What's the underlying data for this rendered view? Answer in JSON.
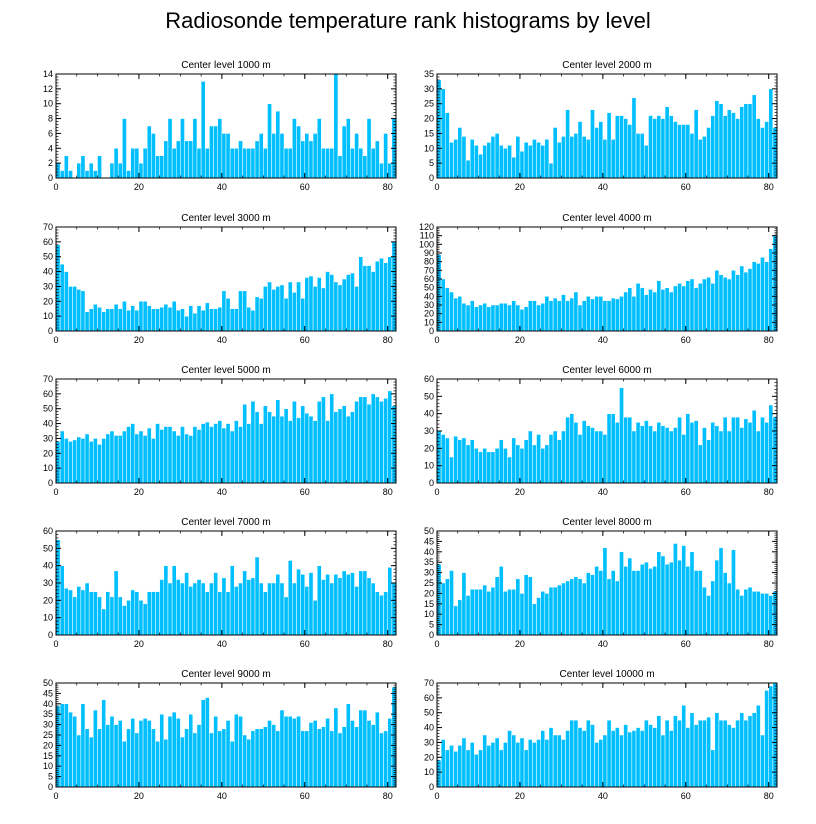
{
  "title": "Radiosonde temperature rank histograms by level",
  "chart_data": [
    {
      "type": "bar",
      "title": "Center level 1000 m",
      "xlim": [
        0,
        82
      ],
      "ylim": [
        0,
        14
      ],
      "yticks": [
        0,
        2,
        4,
        6,
        8,
        10,
        12,
        14
      ],
      "xticks": [
        0,
        20,
        40,
        60,
        80
      ],
      "values": [
        2,
        1,
        3,
        1,
        0,
        2,
        3,
        1,
        2,
        1,
        3,
        0,
        0,
        2,
        4,
        2,
        8,
        1,
        4,
        4,
        2,
        4,
        7,
        6,
        3,
        3,
        5,
        8,
        4,
        5,
        8,
        5,
        5,
        8,
        4,
        13,
        4,
        7,
        7,
        8,
        6,
        6,
        4,
        4,
        5,
        4,
        4,
        4,
        5,
        6,
        4,
        10,
        6,
        9,
        6,
        4,
        4,
        8,
        7,
        5,
        6,
        5,
        6,
        8,
        4,
        4,
        4,
        14,
        3,
        7,
        8,
        4,
        6,
        4,
        3,
        8,
        4,
        5,
        2,
        6,
        2,
        8
      ]
    },
    {
      "type": "bar",
      "title": "Center level 2000 m",
      "xlim": [
        0,
        82
      ],
      "ylim": [
        0,
        35
      ],
      "yticks": [
        0,
        5,
        10,
        15,
        20,
        25,
        30,
        35
      ],
      "xticks": [
        0,
        20,
        40,
        60,
        80
      ],
      "values": [
        33,
        30,
        22,
        12,
        13,
        17,
        14,
        6,
        13,
        11,
        8,
        11,
        12,
        14,
        15,
        11,
        10,
        11,
        7,
        14,
        9,
        12,
        11,
        13,
        12,
        11,
        13,
        5,
        17,
        12,
        14,
        23,
        14,
        15,
        19,
        14,
        13,
        23,
        17,
        19,
        13,
        22,
        13,
        21,
        21,
        20,
        18,
        27,
        15,
        15,
        11,
        21,
        20,
        21,
        20,
        24,
        21,
        19,
        18,
        18,
        18,
        15,
        23,
        13,
        14,
        17,
        21,
        26,
        25,
        21,
        23,
        22,
        20,
        24,
        25,
        25,
        28,
        20,
        17,
        19,
        30,
        17
      ]
    },
    {
      "type": "bar",
      "title": "Center level 3000 m",
      "xlim": [
        0,
        82
      ],
      "ylim": [
        0,
        70
      ],
      "yticks": [
        0,
        10,
        20,
        30,
        40,
        50,
        60,
        70
      ],
      "xticks": [
        0,
        20,
        40,
        60,
        80
      ],
      "values": [
        58,
        45,
        40,
        30,
        30,
        28,
        27,
        13,
        15,
        18,
        16,
        13,
        15,
        15,
        18,
        15,
        20,
        14,
        17,
        14,
        20,
        20,
        17,
        15,
        15,
        16,
        18,
        16,
        20,
        14,
        15,
        10,
        17,
        12,
        17,
        14,
        19,
        15,
        15,
        16,
        27,
        22,
        15,
        15,
        27,
        27,
        16,
        14,
        23,
        22,
        30,
        33,
        28,
        30,
        31,
        22,
        33,
        26,
        33,
        22,
        36,
        37,
        30,
        36,
        29,
        40,
        38,
        33,
        31,
        35,
        38,
        39,
        30,
        50,
        44,
        44,
        40,
        47,
        49,
        46,
        50,
        60
      ]
    },
    {
      "type": "bar",
      "title": "Center level 4000 m",
      "xlim": [
        0,
        82
      ],
      "ylim": [
        0,
        120
      ],
      "yticks": [
        0,
        10,
        20,
        30,
        40,
        50,
        60,
        70,
        80,
        90,
        100,
        110,
        120
      ],
      "xticks": [
        0,
        20,
        40,
        60,
        80
      ],
      "values": [
        88,
        60,
        50,
        45,
        38,
        40,
        32,
        30,
        35,
        28,
        30,
        32,
        28,
        30,
        30,
        32,
        32,
        30,
        35,
        30,
        25,
        28,
        35,
        35,
        30,
        32,
        40,
        35,
        38,
        35,
        42,
        35,
        38,
        45,
        30,
        35,
        40,
        37,
        40,
        40,
        35,
        35,
        38,
        37,
        40,
        45,
        50,
        40,
        55,
        50,
        42,
        48,
        45,
        58,
        48,
        50,
        45,
        52,
        55,
        52,
        58,
        60,
        50,
        55,
        60,
        62,
        55,
        70,
        65,
        62,
        60,
        70,
        65,
        75,
        68,
        72,
        80,
        78,
        85,
        80,
        95,
        110
      ]
    },
    {
      "type": "bar",
      "title": "Center level 5000 m",
      "xlim": [
        0,
        82
      ],
      "ylim": [
        0,
        70
      ],
      "yticks": [
        0,
        10,
        20,
        30,
        40,
        50,
        60,
        70
      ],
      "xticks": [
        0,
        20,
        40,
        60,
        80
      ],
      "values": [
        28,
        35,
        30,
        28,
        29,
        31,
        30,
        33,
        28,
        30,
        26,
        30,
        33,
        35,
        32,
        32,
        35,
        38,
        40,
        33,
        35,
        32,
        37,
        30,
        40,
        36,
        38,
        38,
        35,
        32,
        38,
        33,
        32,
        38,
        36,
        40,
        41,
        38,
        40,
        42,
        37,
        40,
        35,
        42,
        38,
        53,
        40,
        55,
        48,
        40,
        52,
        48,
        45,
        56,
        45,
        50,
        42,
        55,
        44,
        52,
        47,
        45,
        42,
        55,
        58,
        42,
        60,
        48,
        50,
        52,
        45,
        48,
        55,
        58,
        58,
        53,
        60,
        58,
        55,
        57,
        62,
        52
      ]
    },
    {
      "type": "bar",
      "title": "Center level 6000 m",
      "xlim": [
        0,
        82
      ],
      "ylim": [
        0,
        60
      ],
      "yticks": [
        0,
        10,
        20,
        30,
        40,
        50,
        60
      ],
      "xticks": [
        0,
        20,
        40,
        60,
        80
      ],
      "values": [
        30,
        28,
        26,
        15,
        27,
        25,
        26,
        22,
        25,
        20,
        18,
        20,
        18,
        18,
        20,
        25,
        20,
        15,
        26,
        22,
        20,
        25,
        30,
        22,
        28,
        20,
        22,
        28,
        30,
        25,
        30,
        38,
        40,
        35,
        28,
        36,
        33,
        32,
        30,
        30,
        28,
        40,
        40,
        35,
        55,
        38,
        38,
        30,
        35,
        33,
        36,
        33,
        30,
        35,
        33,
        32,
        30,
        32,
        38,
        28,
        40,
        35,
        36,
        22,
        32,
        25,
        35,
        33,
        30,
        38,
        30,
        38,
        38,
        32,
        37,
        35,
        42,
        30,
        38,
        35,
        45,
        38
      ]
    },
    {
      "type": "bar",
      "title": "Center level 7000 m",
      "xlim": [
        0,
        82
      ],
      "ylim": [
        0,
        60
      ],
      "yticks": [
        0,
        10,
        20,
        30,
        40,
        50,
        60
      ],
      "xticks": [
        0,
        20,
        40,
        60,
        80
      ],
      "values": [
        55,
        40,
        27,
        26,
        22,
        28,
        26,
        30,
        25,
        25,
        22,
        15,
        25,
        22,
        37,
        22,
        17,
        20,
        26,
        25,
        20,
        18,
        25,
        25,
        25,
        32,
        40,
        30,
        40,
        32,
        30,
        36,
        28,
        30,
        32,
        30,
        25,
        30,
        36,
        25,
        33,
        25,
        40,
        28,
        30,
        37,
        32,
        33,
        45,
        30,
        25,
        30,
        30,
        35,
        30,
        22,
        43,
        30,
        38,
        35,
        28,
        36,
        20,
        40,
        32,
        35,
        30,
        35,
        33,
        37,
        35,
        36,
        28,
        37,
        37,
        33,
        30,
        25,
        23,
        25,
        39,
        30
      ]
    },
    {
      "type": "bar",
      "title": "Center level 8000 m",
      "xlim": [
        0,
        82
      ],
      "ylim": [
        0,
        50
      ],
      "yticks": [
        0,
        5,
        10,
        15,
        20,
        25,
        30,
        35,
        40,
        45,
        50
      ],
      "xticks": [
        0,
        20,
        40,
        60,
        80
      ],
      "values": [
        34,
        25,
        27,
        31,
        14,
        17,
        30,
        19,
        22,
        22,
        22,
        24,
        21,
        23,
        28,
        33,
        21,
        22,
        22,
        27,
        20,
        29,
        28,
        15,
        18,
        21,
        20,
        23,
        23,
        24,
        25,
        26,
        27,
        28,
        27,
        25,
        30,
        29,
        33,
        31,
        42,
        27,
        31,
        26,
        40,
        33,
        37,
        31,
        31,
        34,
        35,
        32,
        33,
        40,
        38,
        34,
        35,
        44,
        36,
        43,
        33,
        40,
        31,
        31,
        23,
        19,
        26,
        36,
        42,
        30,
        25,
        41,
        22,
        19,
        22,
        23,
        21,
        21,
        20,
        20,
        19,
        21
      ]
    },
    {
      "type": "bar",
      "title": "Center level 9000 m",
      "xlim": [
        0,
        82
      ],
      "ylim": [
        0,
        50
      ],
      "yticks": [
        0,
        5,
        10,
        15,
        20,
        25,
        30,
        35,
        40,
        45,
        50
      ],
      "xticks": [
        0,
        20,
        40,
        60,
        80
      ],
      "values": [
        39,
        40,
        40,
        36,
        34,
        25,
        40,
        28,
        24,
        37,
        28,
        42,
        30,
        34,
        30,
        32,
        22,
        28,
        33,
        26,
        32,
        33,
        32,
        28,
        22,
        35,
        23,
        34,
        36,
        33,
        24,
        28,
        35,
        26,
        30,
        42,
        43,
        26,
        34,
        27,
        28,
        32,
        22,
        35,
        34,
        25,
        23,
        27,
        28,
        28,
        29,
        32,
        30,
        27,
        37,
        34,
        34,
        33,
        34,
        27,
        27,
        31,
        32,
        28,
        29,
        33,
        27,
        38,
        26,
        29,
        40,
        32,
        29,
        37,
        37,
        32,
        30,
        36,
        26,
        27,
        33,
        48
      ]
    },
    {
      "type": "bar",
      "title": "Center level 10000 m",
      "xlim": [
        0,
        82
      ],
      "ylim": [
        0,
        70
      ],
      "yticks": [
        0,
        10,
        20,
        30,
        40,
        50,
        60,
        70
      ],
      "xticks": [
        0,
        20,
        40,
        60,
        80
      ],
      "values": [
        18,
        32,
        25,
        28,
        24,
        28,
        33,
        25,
        30,
        22,
        25,
        35,
        28,
        30,
        33,
        25,
        30,
        38,
        35,
        30,
        33,
        25,
        32,
        30,
        32,
        38,
        32,
        40,
        35,
        35,
        32,
        38,
        45,
        45,
        40,
        38,
        45,
        42,
        30,
        32,
        35,
        45,
        38,
        40,
        35,
        42,
        37,
        38,
        40,
        38,
        45,
        42,
        40,
        48,
        35,
        45,
        38,
        48,
        45,
        55,
        40,
        50,
        42,
        45,
        45,
        47,
        25,
        50,
        45,
        45,
        42,
        40,
        45,
        50,
        45,
        48,
        50,
        55,
        35,
        65,
        68,
        70
      ]
    }
  ]
}
